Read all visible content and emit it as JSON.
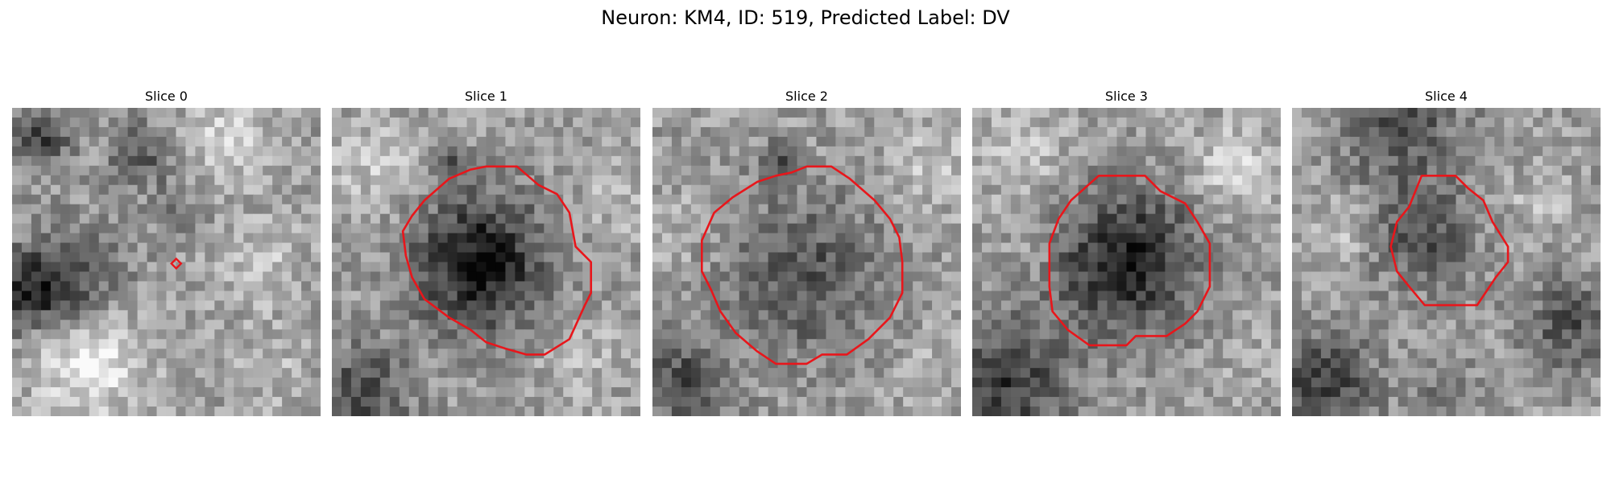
{
  "figure": {
    "title": "Neuron: KM4, ID: 519, Predicted Label: DV"
  },
  "contour_color": "#e8161b",
  "panels": [
    {
      "title": "Slice 0",
      "contour": "marker"
    },
    {
      "title": "Slice 1",
      "contour": "outline"
    },
    {
      "title": "Slice 2",
      "contour": "outline"
    },
    {
      "title": "Slice 3",
      "contour": "outline"
    },
    {
      "title": "Slice 4",
      "contour": "outline"
    }
  ]
}
